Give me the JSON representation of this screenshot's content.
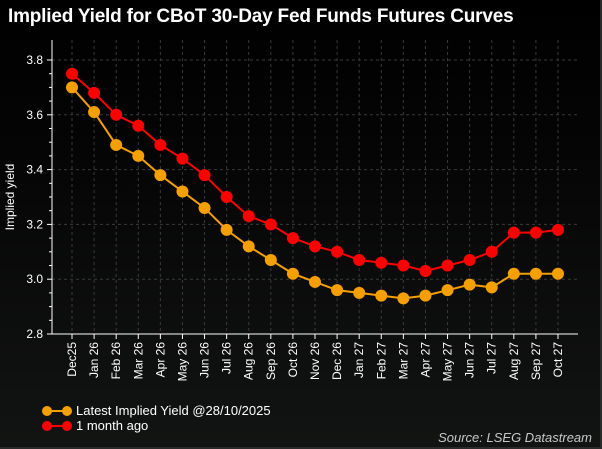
{
  "chart_data": {
    "type": "line",
    "title": "Implied Yield for CBoT 30-Day Fed Funds Futures Curves",
    "ylabel": "Implied yield",
    "xlabel": "",
    "ylim": [
      2.8,
      3.8
    ],
    "yticks": [
      "2.8",
      "3.0",
      "3.2",
      "3.4",
      "3.6",
      "3.8"
    ],
    "grid": true,
    "legend_position": "bottom-left",
    "categories": [
      "Dec25",
      "Jan 26",
      "Feb 26",
      "Mar 26",
      "Apr 26",
      "May 26",
      "Jun 26",
      "Jul 26",
      "Aug 26",
      "Sep 26",
      "Oct 26",
      "Nov 26",
      "Dec 26",
      "Jan 27",
      "Feb 27",
      "Mar 27",
      "Apr 27",
      "May 27",
      "Jun 27",
      "Jul 27",
      "Aug 27",
      "Sep 27",
      "Oct 27"
    ],
    "series": [
      {
        "name": "Latest Implied Yield @28/10/2025",
        "color": "#f5a000",
        "values": [
          3.7,
          3.61,
          3.49,
          3.45,
          3.38,
          3.32,
          3.26,
          3.18,
          3.12,
          3.07,
          3.02,
          2.99,
          2.96,
          2.95,
          2.94,
          2.93,
          2.94,
          2.96,
          2.98,
          2.97,
          3.02,
          3.02,
          3.02
        ]
      },
      {
        "name": "1 month ago",
        "color": "#ff0000",
        "values": [
          3.75,
          3.68,
          3.6,
          3.56,
          3.49,
          3.44,
          3.38,
          3.3,
          3.23,
          3.2,
          3.15,
          3.12,
          3.1,
          3.07,
          3.06,
          3.05,
          3.03,
          3.05,
          3.07,
          3.1,
          3.17,
          3.17,
          3.18
        ]
      }
    ],
    "source": "Source: LSEG Datastream"
  }
}
